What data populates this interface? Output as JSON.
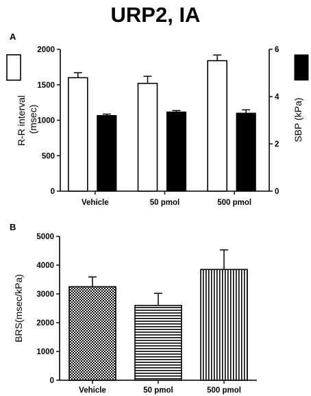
{
  "title": "URP2, IA",
  "chart_data": [
    {
      "type": "bar",
      "panel_label": "A",
      "categories": [
        "Vehicle",
        "50 pmol",
        "500 pmol"
      ],
      "ylabel": "R-R interval\n(msec)",
      "ylim": [
        0,
        2000
      ],
      "yticks": [
        0,
        500,
        1000,
        1500,
        2000
      ],
      "y2label": "SBP (kPa)",
      "y2lim": [
        0,
        6
      ],
      "y2ticks": [
        0,
        2,
        4,
        6
      ],
      "grid": false,
      "legend": "side keys: open bar = left axis, filled bar = right axis",
      "series": [
        {
          "key": "rr",
          "axis": "left",
          "fill": "#ffffff",
          "values": [
            1600,
            1520,
            1840
          ],
          "errors": [
            70,
            100,
            80
          ]
        },
        {
          "key": "sbp",
          "axis": "right",
          "fill": "#000000",
          "values": [
            3.2,
            3.35,
            3.3
          ],
          "errors": [
            0.06,
            0.06,
            0.14
          ]
        }
      ]
    },
    {
      "type": "bar",
      "panel_label": "B",
      "categories": [
        "Vehicle",
        "50 pmol",
        "500 pmol"
      ],
      "ylabel": "BRS(msec/kPa)",
      "ylim": [
        0,
        5000
      ],
      "yticks": [
        0,
        1000,
        2000,
        3000,
        4000,
        5000
      ],
      "grid": false,
      "series": [
        {
          "values": [
            3250,
            2600,
            3850
          ],
          "errors": [
            340,
            420,
            680
          ],
          "patterns": [
            "checker",
            "horizontal",
            "vertical"
          ]
        }
      ]
    }
  ]
}
